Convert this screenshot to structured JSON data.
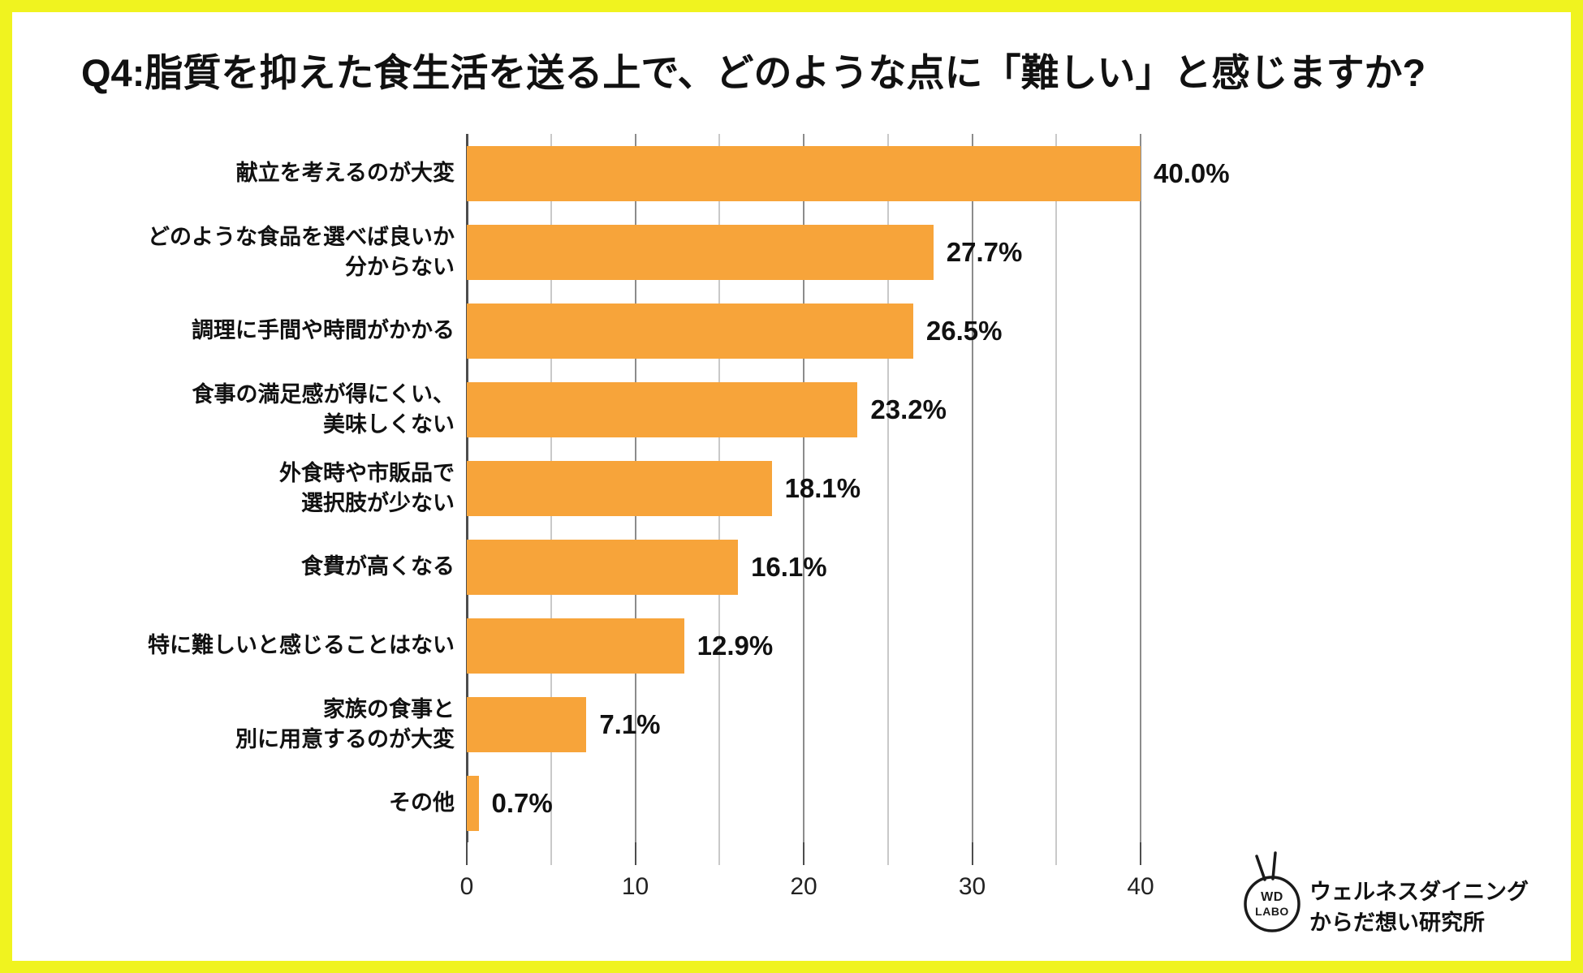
{
  "title": "Q4:脂質を抑えた食生活を送る上で、どのような点に「難しい」と感じますか?",
  "colors": {
    "border": "#F0F31F",
    "bar": "#F7A43A",
    "axis": "#4D4D4D",
    "grid_major": "#8C8C8C",
    "grid_minor": "#C9C9C9",
    "text": "#111111"
  },
  "chart_data": {
    "type": "bar",
    "orientation": "horizontal",
    "title": "Q4:脂質を抑えた食生活を送る上で、どのような点に「難しい」と感じますか?",
    "categories": [
      [
        "献立を考えるのが大変"
      ],
      [
        "どのような食品を選べば良いか",
        "分からない"
      ],
      [
        "調理に手間や時間がかかる"
      ],
      [
        "食事の満足感が得にくい、",
        "美味しくない"
      ],
      [
        "外食時や市販品で",
        "選択肢が少ない"
      ],
      [
        "食費が高くなる"
      ],
      [
        "特に難しいと感じることはない"
      ],
      [
        "家族の食事と",
        "別に用意するのが大変"
      ],
      [
        "その他"
      ]
    ],
    "values": [
      40.0,
      27.7,
      26.5,
      23.2,
      18.1,
      16.1,
      12.9,
      7.1,
      0.7
    ],
    "value_labels": [
      "40.0%",
      "27.7%",
      "26.5%",
      "23.2%",
      "18.1%",
      "16.1%",
      "12.9%",
      "7.1%",
      "0.7%"
    ],
    "xlabel": "",
    "ylabel": "",
    "xlim": [
      0,
      40
    ],
    "x_major_ticks": [
      0,
      10,
      20,
      30,
      40
    ],
    "x_minor_ticks": [
      5,
      15,
      25,
      35
    ],
    "grid": "vertical gridlines every 5",
    "legend": "none",
    "bar_color": "#F7A43A"
  },
  "logo": {
    "circle_line1": "WD",
    "circle_line2": "LABO",
    "text_line1": "ウェルネスダイニング",
    "text_line2": "からだ想い研究所"
  }
}
